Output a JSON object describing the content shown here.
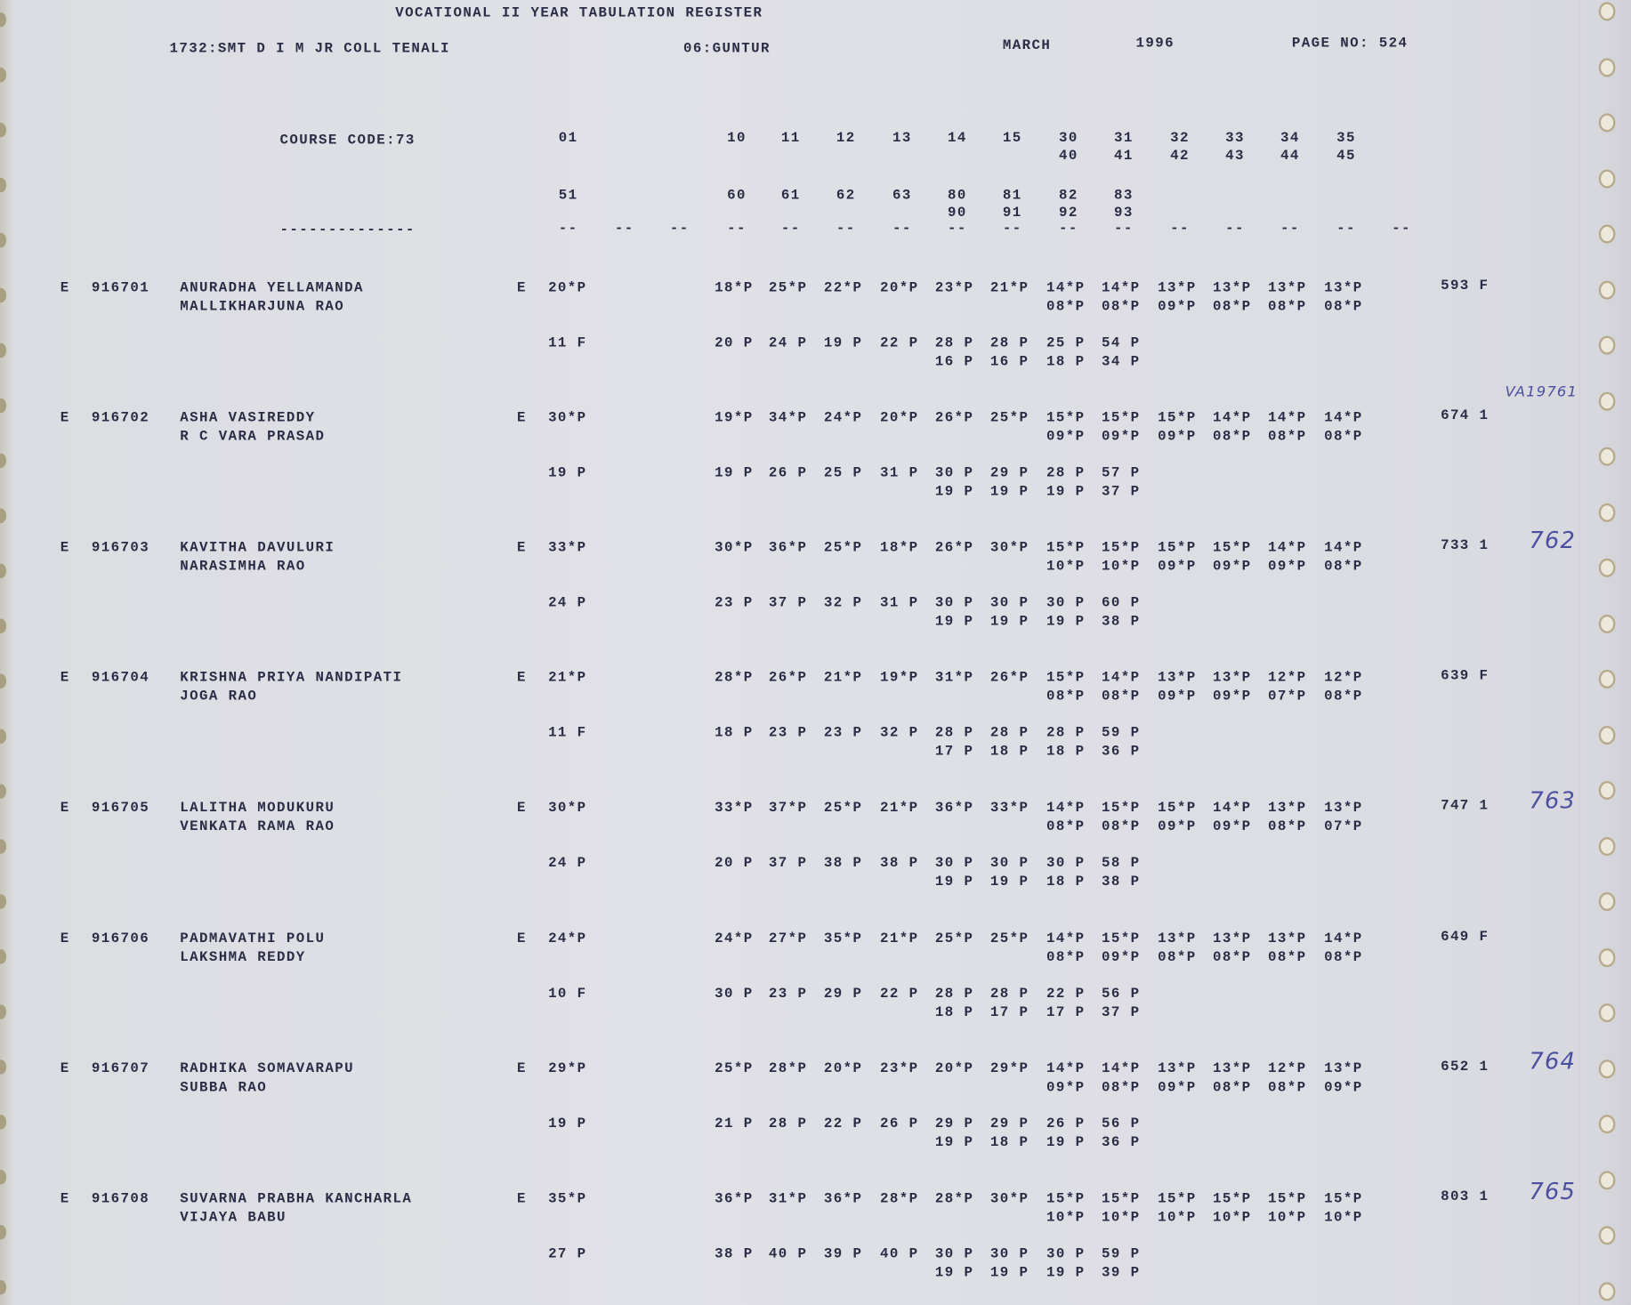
{
  "header": {
    "title": "VOCATIONAL II YEAR TABULATION REGISTER",
    "college": "1732:SMT D I M JR COLL TENALI",
    "district": "06:GUNTUR",
    "month": "MARCH",
    "year": "1996",
    "page": "PAGE NO: 524"
  },
  "columns": {
    "course_code": "COURSE CODE:73",
    "row_a": [
      "01",
      "10",
      "11",
      "12",
      "13",
      "14",
      "15",
      "30",
      "31",
      "32",
      "33",
      "34",
      "35"
    ],
    "row_a_sub": [
      "40",
      "41",
      "42",
      "43",
      "44",
      "45"
    ],
    "row_b": [
      "51",
      "60",
      "61",
      "62",
      "63",
      "80",
      "81",
      "82",
      "83"
    ],
    "row_b_sub": [
      "90",
      "91",
      "92",
      "93"
    ],
    "dash_long": "--------------",
    "dash": "--"
  },
  "students": [
    {
      "prefix": "E",
      "ht": "916701",
      "name": "ANURADHA YELLAMANDA",
      "parent": "MALLIKHARJUNA RAO",
      "medium": "E",
      "p1": "20*P",
      "m1": [
        "18*P",
        "25*P",
        "22*P",
        "20*P",
        "23*P",
        "21*P",
        "14*P",
        "14*P",
        "13*P",
        "13*P",
        "13*P",
        "13*P"
      ],
      "s1": [
        "08*P",
        "08*P",
        "09*P",
        "08*P",
        "08*P",
        "08*P"
      ],
      "total": "593 F",
      "p2": "11 F",
      "m2": [
        "20 P",
        "24 P",
        "19 P",
        "22 P",
        "28 P",
        "28 P",
        "25 P",
        "54 P"
      ],
      "s2": [
        "16 P",
        "16 P",
        "18 P",
        "34 P"
      ],
      "note": ""
    },
    {
      "prefix": "E",
      "ht": "916702",
      "name": "ASHA VASIREDDY",
      "parent": "R C VARA PRASAD",
      "medium": "E",
      "p1": "30*P",
      "m1": [
        "19*P",
        "34*P",
        "24*P",
        "20*P",
        "26*P",
        "25*P",
        "15*P",
        "15*P",
        "15*P",
        "14*P",
        "14*P",
        "14*P"
      ],
      "s1": [
        "09*P",
        "09*P",
        "09*P",
        "08*P",
        "08*P",
        "08*P"
      ],
      "total": "674 1",
      "p2": "19 P",
      "m2": [
        "19 P",
        "26 P",
        "25 P",
        "31 P",
        "30 P",
        "29 P",
        "28 P",
        "57 P"
      ],
      "s2": [
        "19 P",
        "19 P",
        "19 P",
        "37 P"
      ],
      "note": "VA19761"
    },
    {
      "prefix": "E",
      "ht": "916703",
      "name": "KAVITHA DAVULURI",
      "parent": "NARASIMHA RAO",
      "medium": "E",
      "p1": "33*P",
      "m1": [
        "30*P",
        "36*P",
        "25*P",
        "18*P",
        "26*P",
        "30*P",
        "15*P",
        "15*P",
        "15*P",
        "15*P",
        "14*P",
        "14*P"
      ],
      "s1": [
        "10*P",
        "10*P",
        "09*P",
        "09*P",
        "09*P",
        "08*P"
      ],
      "total": "733 1",
      "p2": "24 P",
      "m2": [
        "23 P",
        "37 P",
        "32 P",
        "31 P",
        "30 P",
        "30 P",
        "30 P",
        "60 P"
      ],
      "s2": [
        "19 P",
        "19 P",
        "19 P",
        "38 P"
      ],
      "note": "762"
    },
    {
      "prefix": "E",
      "ht": "916704",
      "name": "KRISHNA PRIYA NANDIPATI",
      "parent": "JOGA RAO",
      "medium": "E",
      "p1": "21*P",
      "m1": [
        "28*P",
        "26*P",
        "21*P",
        "19*P",
        "31*P",
        "26*P",
        "15*P",
        "14*P",
        "13*P",
        "13*P",
        "12*P",
        "12*P"
      ],
      "s1": [
        "08*P",
        "08*P",
        "09*P",
        "09*P",
        "07*P",
        "08*P"
      ],
      "total": "639 F",
      "p2": "11 F",
      "m2": [
        "18 P",
        "23 P",
        "23 P",
        "32 P",
        "28 P",
        "28 P",
        "28 P",
        "59 P"
      ],
      "s2": [
        "17 P",
        "18 P",
        "18 P",
        "36 P"
      ],
      "note": ""
    },
    {
      "prefix": "E",
      "ht": "916705",
      "name": "LALITHA MODUKURU",
      "parent": "VENKATA RAMA RAO",
      "medium": "E",
      "p1": "30*P",
      "m1": [
        "33*P",
        "37*P",
        "25*P",
        "21*P",
        "36*P",
        "33*P",
        "14*P",
        "15*P",
        "15*P",
        "14*P",
        "13*P",
        "13*P"
      ],
      "s1": [
        "08*P",
        "08*P",
        "09*P",
        "09*P",
        "08*P",
        "07*P"
      ],
      "total": "747 1",
      "p2": "24 P",
      "m2": [
        "20 P",
        "37 P",
        "38 P",
        "38 P",
        "30 P",
        "30 P",
        "30 P",
        "58 P"
      ],
      "s2": [
        "19 P",
        "19 P",
        "18 P",
        "38 P"
      ],
      "note": "763"
    },
    {
      "prefix": "E",
      "ht": "916706",
      "name": "PADMAVATHI POLU",
      "parent": "LAKSHMA REDDY",
      "medium": "E",
      "p1": "24*P",
      "m1": [
        "24*P",
        "27*P",
        "35*P",
        "21*P",
        "25*P",
        "25*P",
        "14*P",
        "15*P",
        "13*P",
        "13*P",
        "13*P",
        "14*P"
      ],
      "s1": [
        "08*P",
        "09*P",
        "08*P",
        "08*P",
        "08*P",
        "08*P"
      ],
      "total": "649 F",
      "p2": "10 F",
      "m2": [
        "30 P",
        "23 P",
        "29 P",
        "22 P",
        "28 P",
        "28 P",
        "22 P",
        "56 P"
      ],
      "s2": [
        "18 P",
        "17 P",
        "17 P",
        "37 P"
      ],
      "note": ""
    },
    {
      "prefix": "E",
      "ht": "916707",
      "name": "RADHIKA SOMAVARAPU",
      "parent": "SUBBA RAO",
      "medium": "E",
      "p1": "29*P",
      "m1": [
        "25*P",
        "28*P",
        "20*P",
        "23*P",
        "20*P",
        "29*P",
        "14*P",
        "14*P",
        "13*P",
        "13*P",
        "12*P",
        "13*P"
      ],
      "s1": [
        "09*P",
        "08*P",
        "09*P",
        "08*P",
        "08*P",
        "09*P"
      ],
      "total": "652 1",
      "p2": "19 P",
      "m2": [
        "21 P",
        "28 P",
        "22 P",
        "26 P",
        "29 P",
        "29 P",
        "26 P",
        "56 P"
      ],
      "s2": [
        "19 P",
        "18 P",
        "19 P",
        "36 P"
      ],
      "note": "764"
    },
    {
      "prefix": "E",
      "ht": "916708",
      "name": "SUVARNA PRABHA KANCHARLA",
      "parent": "VIJAYA BABU",
      "medium": "E",
      "p1": "35*P",
      "m1": [
        "36*P",
        "31*P",
        "36*P",
        "28*P",
        "28*P",
        "30*P",
        "15*P",
        "15*P",
        "15*P",
        "15*P",
        "15*P",
        "15*P"
      ],
      "s1": [
        "10*P",
        "10*P",
        "10*P",
        "10*P",
        "10*P",
        "10*P"
      ],
      "total": "803 1",
      "p2": "27 P",
      "m2": [
        "38 P",
        "40 P",
        "39 P",
        "40 P",
        "30 P",
        "30 P",
        "30 P",
        "59 P"
      ],
      "s2": [
        "19 P",
        "19 P",
        "19 P",
        "39 P"
      ],
      "note": "765"
    }
  ]
}
